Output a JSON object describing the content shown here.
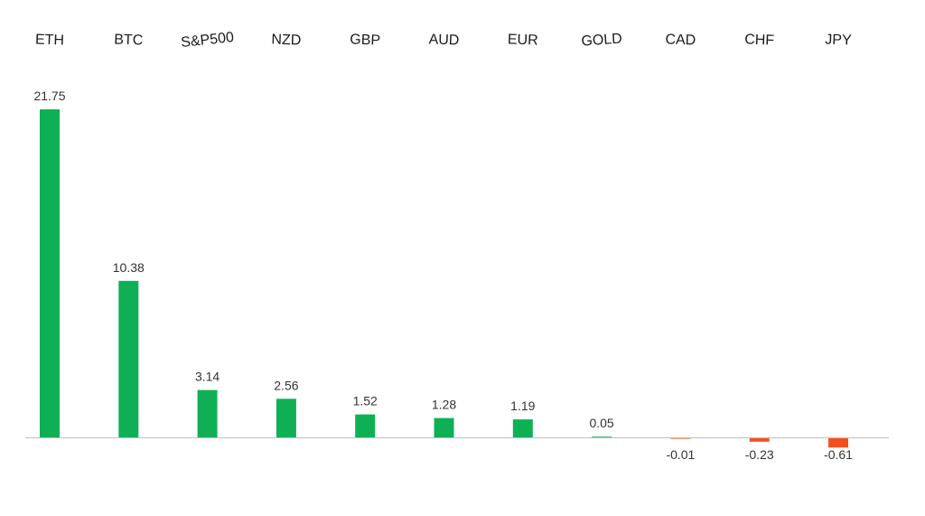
{
  "chart_data": {
    "type": "bar",
    "title": "",
    "xlabel": "",
    "ylabel": "",
    "categories": [
      "ETH",
      "BTC",
      "S&P500",
      "NZD",
      "GBP",
      "AUD",
      "EUR",
      "GOLD",
      "CAD",
      "CHF",
      "JPY"
    ],
    "values": [
      21.75,
      10.38,
      3.14,
      2.56,
      1.52,
      1.28,
      1.19,
      0.05,
      -0.01,
      -0.23,
      -0.61
    ],
    "value_labels": [
      "21.75",
      "10.38",
      "3.14",
      "2.56",
      "1.52",
      "1.28",
      "1.19",
      "0.05",
      "-0.01",
      "-0.23",
      "-0.61"
    ],
    "ylim": [
      -2,
      24
    ],
    "grid": false,
    "legend": "none",
    "category_axis_position": "top",
    "colors": {
      "positive": "#0fb055",
      "negative": "#f4511e",
      "axis": "#bfbfbf"
    }
  }
}
